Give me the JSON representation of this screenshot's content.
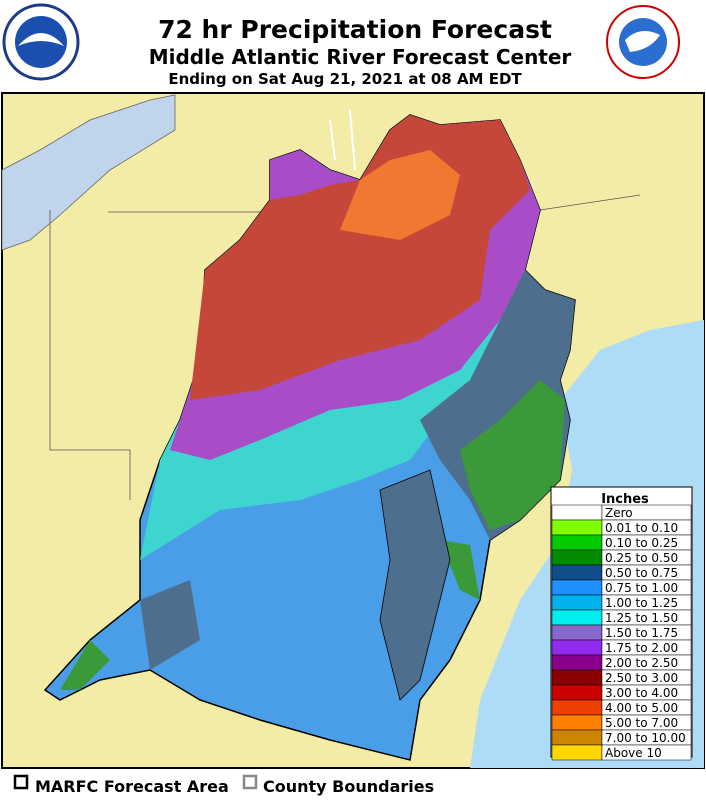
{
  "header": {
    "title": "72 hr Precipitation Forecast",
    "subtitle": "Middle Atlantic River Forecast Center",
    "ending": "Ending on Sat Aug 21, 2021 at 08 AM EDT"
  },
  "legend": {
    "title": "Inches",
    "items": [
      {
        "label": "Zero",
        "color": "#ffffff"
      },
      {
        "label": "0.01 to 0.10",
        "color": "#7fff00"
      },
      {
        "label": "0.10 to 0.25",
        "color": "#00cd00"
      },
      {
        "label": "0.25 to 0.50",
        "color": "#008b00"
      },
      {
        "label": "0.50 to 0.75",
        "color": "#104e8b"
      },
      {
        "label": "0.75 to 1.00",
        "color": "#1e90ff"
      },
      {
        "label": "1.00 to 1.25",
        "color": "#00b2ee"
      },
      {
        "label": "1.25 to 1.50",
        "color": "#00eeee"
      },
      {
        "label": "1.50 to 1.75",
        "color": "#8968cd"
      },
      {
        "label": "1.75 to 2.00",
        "color": "#912cee"
      },
      {
        "label": "2.00 to 2.50",
        "color": "#8b008b"
      },
      {
        "label": "2.50 to 3.00",
        "color": "#8b0000"
      },
      {
        "label": "3.00 to 4.00",
        "color": "#cd0000"
      },
      {
        "label": "4.00 to 5.00",
        "color": "#ee4000"
      },
      {
        "label": "5.00 to 7.00",
        "color": "#ff7f00"
      },
      {
        "label": "7.00 to 10.00",
        "color": "#cd8500"
      },
      {
        "label": "Above 10",
        "color": "#ffd700"
      }
    ]
  },
  "footer": {
    "items": [
      "MARFC Forecast Area",
      "County Boundaries"
    ]
  }
}
